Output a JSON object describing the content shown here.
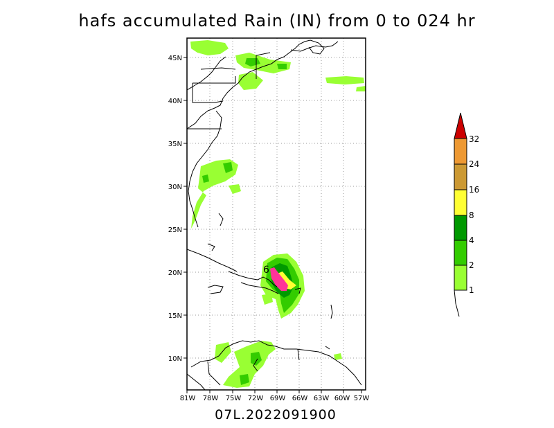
{
  "title": "hafs accumulated Rain (IN) from 0 to 024 hr",
  "footer": "07L.2022091900",
  "lat_labels": [
    "45N",
    "40N",
    "35N",
    "30N",
    "25N",
    "20N",
    "15N",
    "10N"
  ],
  "lon_labels": [
    "81W",
    "78W",
    "75W",
    "72W",
    "69W",
    "66W",
    "63W",
    "60W",
    "57W"
  ],
  "colorbar": {
    "levels": [
      "1",
      "2",
      "4",
      "8",
      "16",
      "24",
      "32"
    ],
    "colors": [
      "#99ff33",
      "#33cc00",
      "#009900",
      "#ffff33",
      "#cc9933",
      "#ee9933",
      "#cc0000"
    ]
  },
  "storm_marker": "6",
  "map_extent": {
    "lon_min": -81,
    "lon_max": -56,
    "lat_min": 7,
    "lat_max": 47
  }
}
